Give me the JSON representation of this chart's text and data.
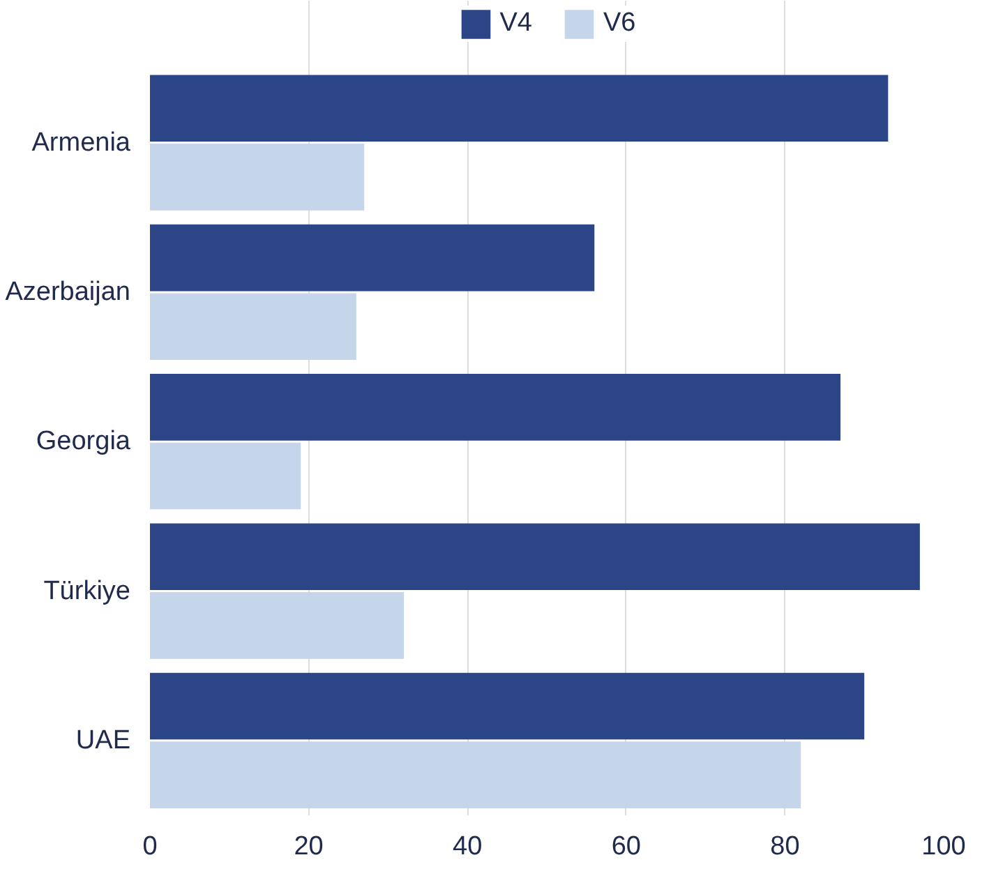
{
  "chart_data": {
    "type": "bar",
    "orientation": "horizontal",
    "categories": [
      "Armenia",
      "Azerbaijan",
      "Georgia",
      "Türkiye",
      "UAE"
    ],
    "series": [
      {
        "name": "V4",
        "color": "#2b4586",
        "values": [
          93,
          56,
          87,
          97,
          90
        ]
      },
      {
        "name": "V6",
        "color": "#c5d5ea",
        "values": [
          27,
          26,
          19,
          32,
          82
        ]
      }
    ],
    "xlim": [
      0,
      100
    ],
    "xticks": [
      0,
      20,
      40,
      60,
      80,
      100
    ],
    "grid": "x",
    "legend": "top"
  }
}
